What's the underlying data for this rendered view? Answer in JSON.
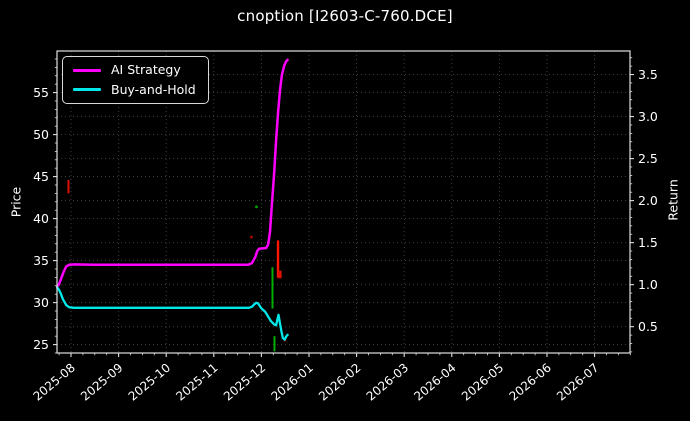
{
  "title": "cnoption [I2603-C-760.DCE]",
  "legend": {
    "items": [
      {
        "label": "AI Strategy",
        "color": "#ff00ff"
      },
      {
        "label": "Buy-and-Hold",
        "color": "#00e8e8"
      }
    ]
  },
  "axes": {
    "left": {
      "label": "Price",
      "range": [
        24.0,
        59.95
      ],
      "ticks": [
        {
          "value": 25,
          "label": "25"
        },
        {
          "value": 30,
          "label": "30"
        },
        {
          "value": 35,
          "label": "35"
        },
        {
          "value": 40,
          "label": "40"
        },
        {
          "value": 45,
          "label": "45"
        },
        {
          "value": 50,
          "label": "50"
        },
        {
          "value": 55,
          "label": "55"
        }
      ]
    },
    "right": {
      "label": "Return",
      "range": [
        0.187,
        3.78
      ],
      "ticks": [
        {
          "value": 0.5,
          "label": "0.5"
        },
        {
          "value": 1.0,
          "label": "1.0"
        },
        {
          "value": 1.5,
          "label": "1.5"
        },
        {
          "value": 2.0,
          "label": "2.0"
        },
        {
          "value": 2.5,
          "label": "2.5"
        },
        {
          "value": 3.0,
          "label": "3.0"
        },
        {
          "value": 3.5,
          "label": "3.5"
        }
      ]
    },
    "x": {
      "range_months": [
        -0.294,
        11.744
      ],
      "ticks": [
        {
          "m": 0,
          "label": "2025-08"
        },
        {
          "m": 1,
          "label": "2025-09"
        },
        {
          "m": 2,
          "label": "2025-10"
        },
        {
          "m": 3,
          "label": "2025-11"
        },
        {
          "m": 4,
          "label": "2025-12"
        },
        {
          "m": 5,
          "label": "2026-01"
        },
        {
          "m": 6,
          "label": "2026-02"
        },
        {
          "m": 7,
          "label": "2026-03"
        },
        {
          "m": 8,
          "label": "2026-04"
        },
        {
          "m": 9,
          "label": "2026-05"
        },
        {
          "m": 10,
          "label": "2026-06"
        },
        {
          "m": 11,
          "label": "2026-07"
        }
      ]
    }
  },
  "chart_data": {
    "type": "line",
    "title": "cnoption [I2603-C-760.DCE]",
    "x_unit": "months after 2025-08 (fractional)",
    "ylabel_left": "Price",
    "ylabel_right": "Return",
    "grid": "dotted, horizontal lines at both left-axis and right-axis major ticks, vertical lines at each month",
    "legend_position": "upper left",
    "series": [
      {
        "name": "AI Strategy",
        "color": "#ff00ff",
        "axis": "left",
        "width": 2.5,
        "points": [
          [
            -0.29,
            31.9
          ],
          [
            -0.25,
            32.2
          ],
          [
            -0.21,
            32.8
          ],
          [
            -0.16,
            33.6
          ],
          [
            -0.1,
            34.3
          ],
          [
            -0.04,
            34.5
          ],
          [
            0.08,
            34.55
          ],
          [
            0.5,
            34.5
          ],
          [
            1.0,
            34.5
          ],
          [
            1.5,
            34.5
          ],
          [
            2.0,
            34.5
          ],
          [
            2.5,
            34.5
          ],
          [
            3.0,
            34.5
          ],
          [
            3.5,
            34.5
          ],
          [
            3.72,
            34.5
          ],
          [
            3.8,
            34.7
          ],
          [
            3.87,
            35.4
          ],
          [
            3.91,
            36.1
          ],
          [
            3.95,
            36.4
          ],
          [
            4.03,
            36.45
          ],
          [
            4.1,
            36.5
          ],
          [
            4.14,
            36.9
          ],
          [
            4.18,
            38.4
          ],
          [
            4.22,
            41.7
          ],
          [
            4.27,
            45.5
          ],
          [
            4.31,
            49.3
          ],
          [
            4.35,
            52.7
          ],
          [
            4.39,
            55.3
          ],
          [
            4.43,
            57.1
          ],
          [
            4.48,
            58.2
          ],
          [
            4.52,
            58.7
          ],
          [
            4.55,
            58.9
          ]
        ]
      },
      {
        "name": "Buy-and-Hold",
        "color": "#00e8e8",
        "axis": "left",
        "width": 2.3,
        "points": [
          [
            -0.29,
            31.8
          ],
          [
            -0.25,
            31.5
          ],
          [
            -0.21,
            31.0
          ],
          [
            -0.17,
            30.4
          ],
          [
            -0.1,
            29.7
          ],
          [
            -0.04,
            29.45
          ],
          [
            0.06,
            29.38
          ],
          [
            0.5,
            29.38
          ],
          [
            1.5,
            29.38
          ],
          [
            2.5,
            29.38
          ],
          [
            3.5,
            29.38
          ],
          [
            3.74,
            29.38
          ],
          [
            3.8,
            29.5
          ],
          [
            3.85,
            29.8
          ],
          [
            3.89,
            29.98
          ],
          [
            3.93,
            29.9
          ],
          [
            3.97,
            29.55
          ],
          [
            4.01,
            29.25
          ],
          [
            4.08,
            28.9
          ],
          [
            4.14,
            28.35
          ],
          [
            4.2,
            27.8
          ],
          [
            4.27,
            27.4
          ],
          [
            4.31,
            27.3
          ],
          [
            4.34,
            28.1
          ],
          [
            4.36,
            28.55
          ],
          [
            4.39,
            27.5
          ],
          [
            4.42,
            26.6
          ],
          [
            4.45,
            25.8
          ],
          [
            4.49,
            25.6
          ],
          [
            4.52,
            25.95
          ],
          [
            4.55,
            26.15
          ]
        ]
      }
    ],
    "markers": [
      {
        "type": "vline",
        "name": "sell-signal",
        "color": "#e01000",
        "m": -0.053,
        "price_from": 44.6,
        "price_to": 43.0,
        "w": 2
      },
      {
        "type": "dot",
        "name": "sell-signal",
        "color": "#b00000",
        "m": 3.792,
        "price": 37.8,
        "r": 1.4
      },
      {
        "type": "dot",
        "name": "buy-signal",
        "color": "#00a000",
        "m": 3.897,
        "price": 41.4,
        "r": 1.4
      },
      {
        "type": "vline",
        "name": "buy-signal",
        "color": "#00b000",
        "m": 4.233,
        "price_from": 34.2,
        "price_to": 29.3,
        "w": 2
      },
      {
        "type": "vline",
        "name": "sell-signal",
        "color": "#ff1500",
        "m": 4.349,
        "price_from": 37.4,
        "price_to": 33.0,
        "w": 2.4
      },
      {
        "type": "vline",
        "name": "sell-signal",
        "color": "#e01000",
        "m": 4.383,
        "price_from": 33.8,
        "price_to": 32.9,
        "w": 4
      },
      {
        "type": "vline",
        "name": "buy-signal",
        "color": "#00b000",
        "m": 4.275,
        "price_from": 26.0,
        "price_to": 24.2,
        "w": 2
      },
      {
        "type": "dot",
        "name": "sell-signal",
        "color": "#900000",
        "m": 4.496,
        "price": 25.5,
        "r": 1.3
      }
    ]
  },
  "colors": {
    "background": "#000000",
    "text": "#ffffff",
    "grid": "#454545",
    "spine": "#e0e0e0",
    "tick": "#e0e0e0"
  }
}
